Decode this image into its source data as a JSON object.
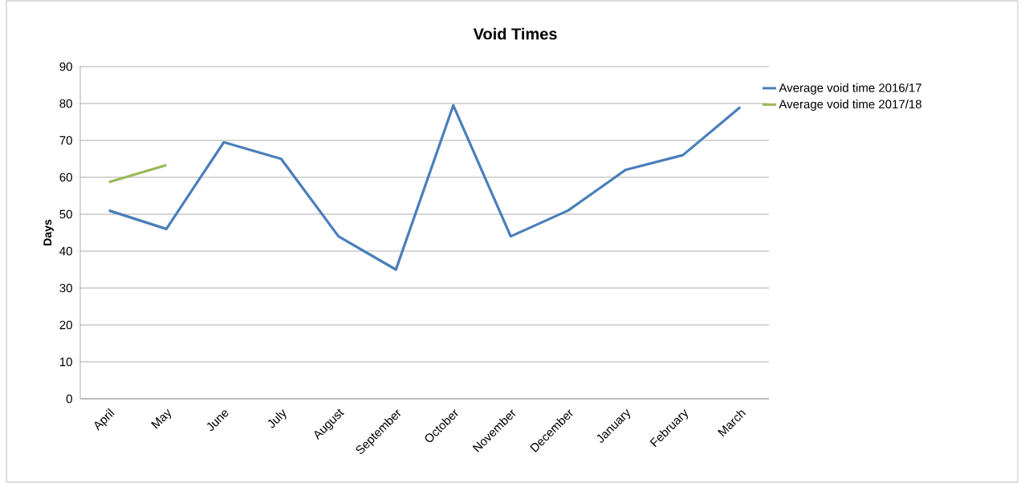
{
  "chart_data": {
    "type": "line",
    "title": "Void Times",
    "ylabel": "Days",
    "categories": [
      "April",
      "May",
      "June",
      "July",
      "August",
      "September",
      "October",
      "November",
      "December",
      "January",
      "February",
      "March"
    ],
    "series": [
      {
        "name": "Average void time 2016/17",
        "color": "#4a7ebb",
        "values": [
          51,
          46,
          69.5,
          65,
          44,
          35,
          79.5,
          44,
          51,
          62,
          66,
          79
        ]
      },
      {
        "name": "Average void time 2017/18",
        "color": "#98b954",
        "values": [
          58.7,
          63.3,
          null,
          null,
          null,
          null,
          null,
          null,
          null,
          null,
          null,
          null
        ]
      }
    ],
    "ylim": [
      0,
      90
    ],
    "yticks": [
      0,
      10,
      20,
      30,
      40,
      50,
      60,
      70,
      80,
      90
    ],
    "grid": "y",
    "legend": "right",
    "marker": "none",
    "line_style": "solid"
  }
}
